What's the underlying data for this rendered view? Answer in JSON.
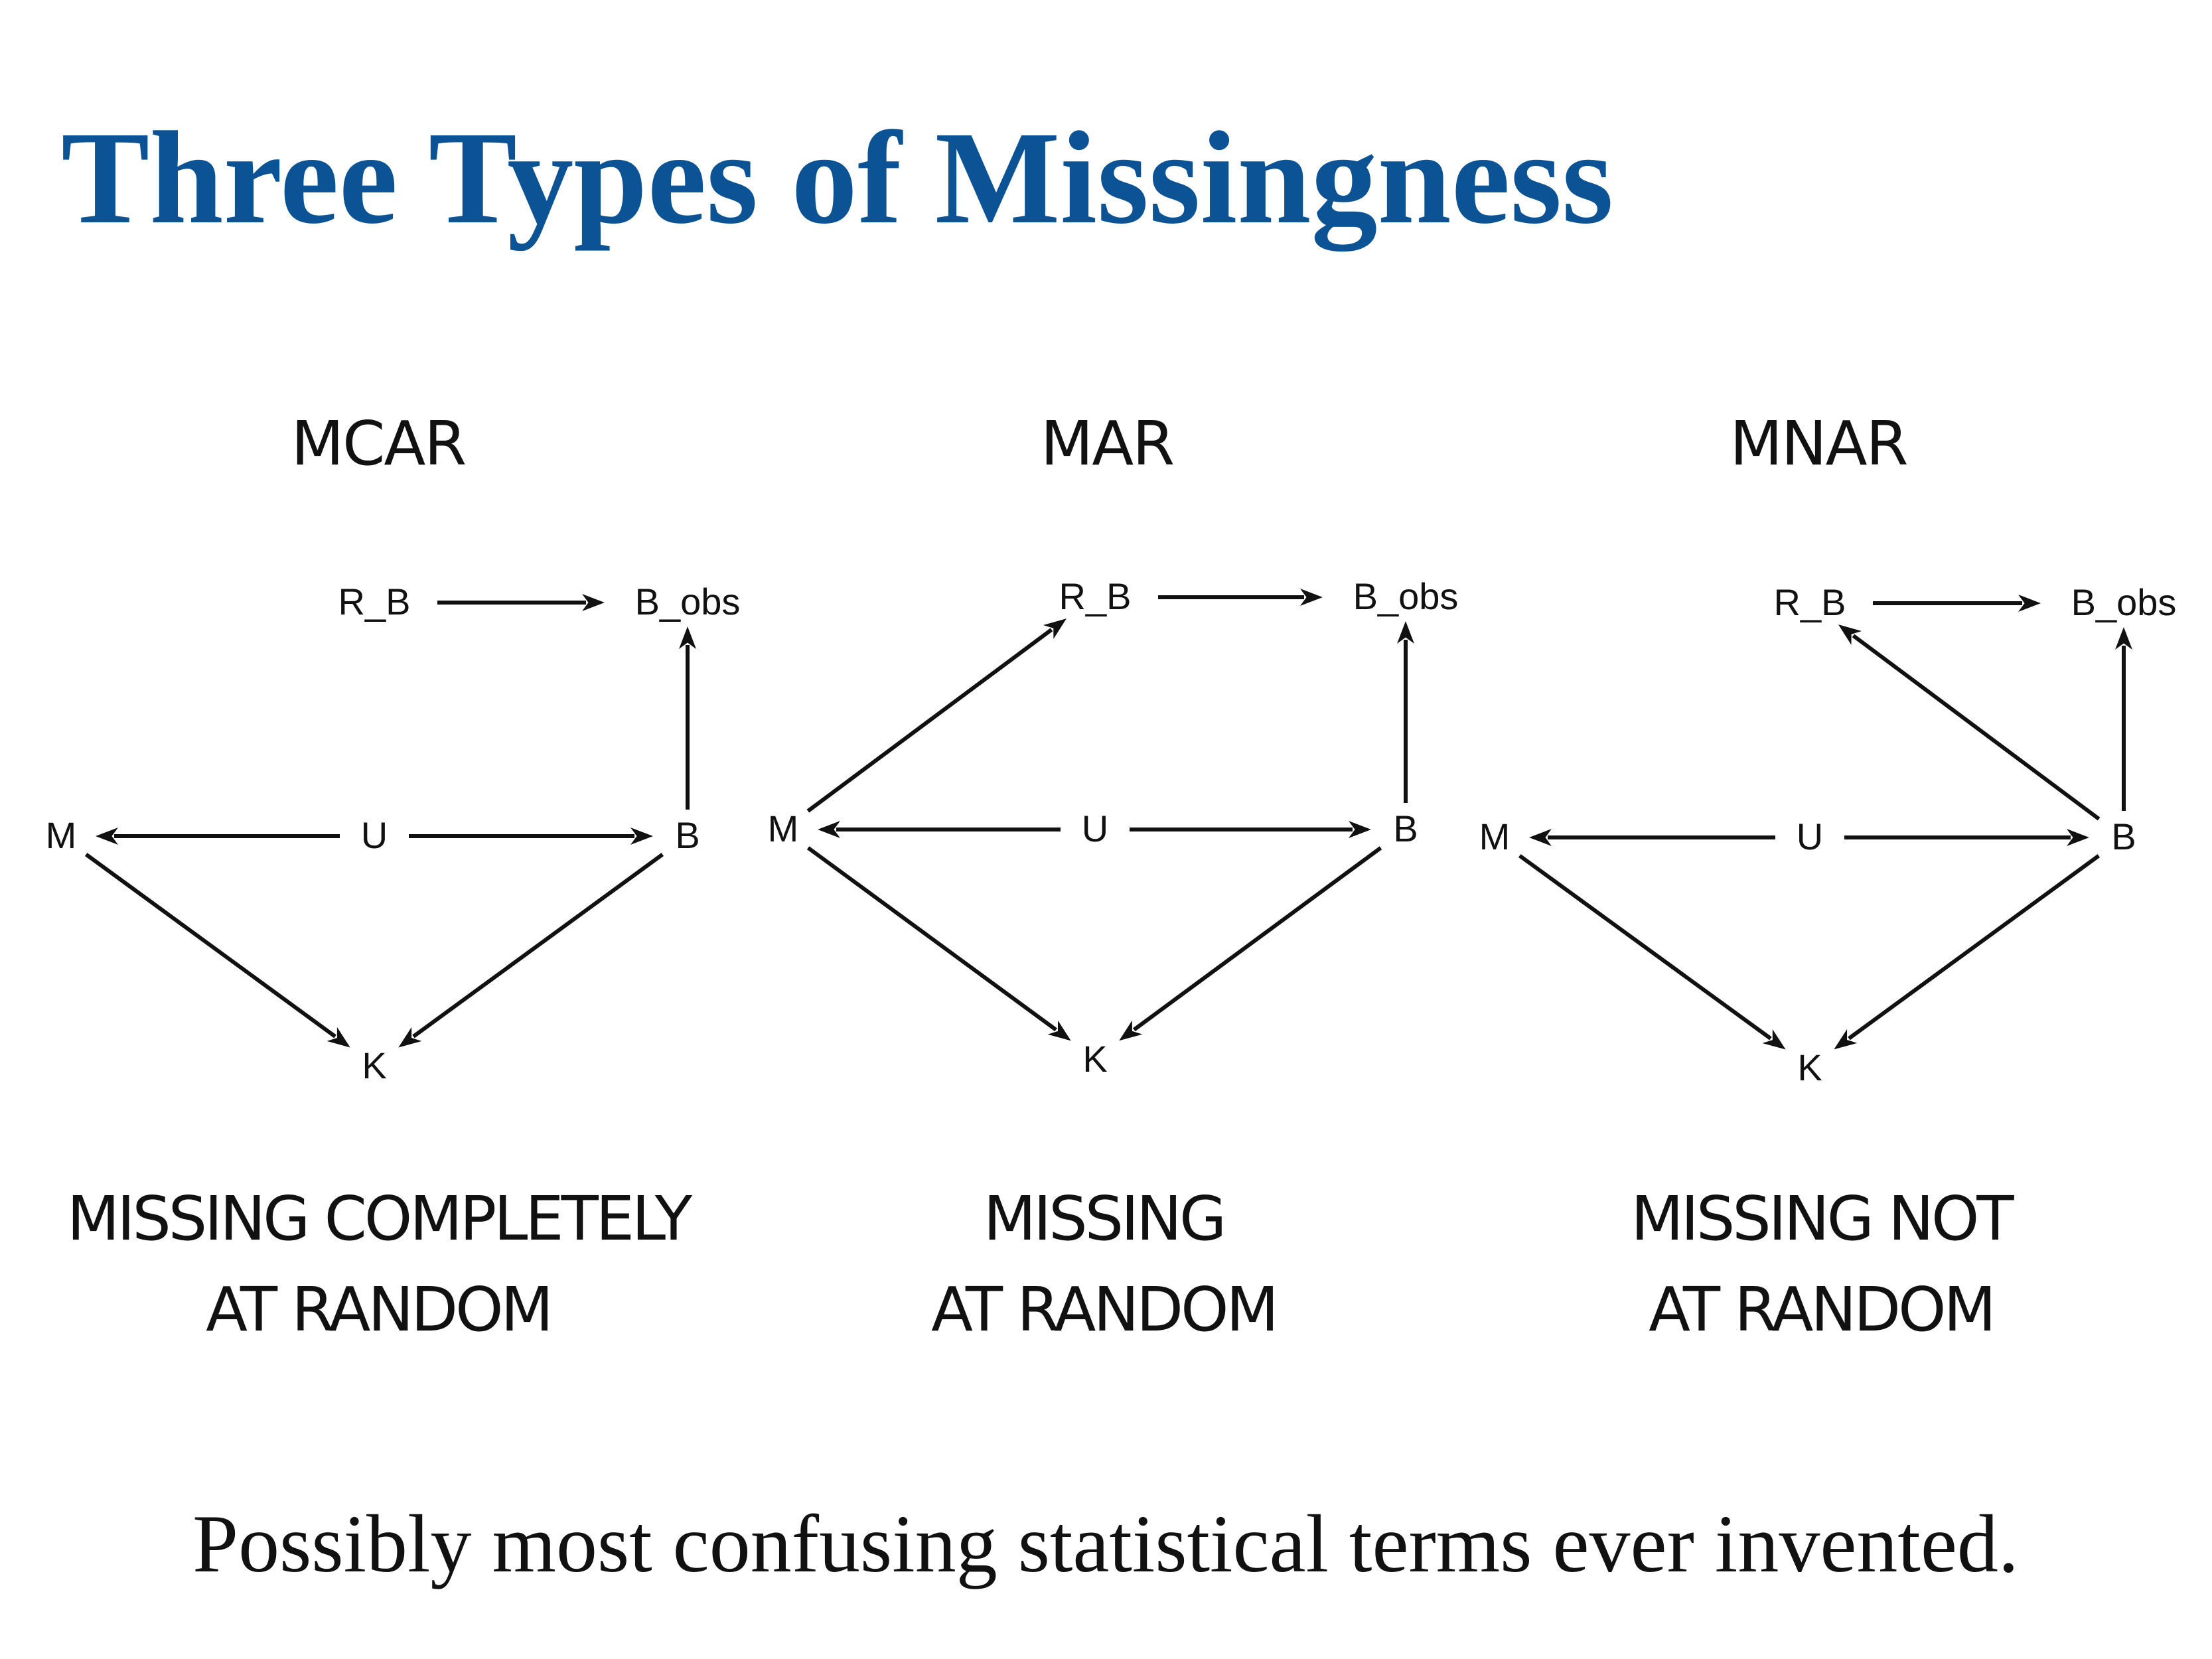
{
  "slide": {
    "title": "Three Types of Missingness",
    "footer": "Possibly most confusing statistical terms ever invented.",
    "title_color": "#0b5394",
    "ink_color": "#111111"
  },
  "panels": [
    {
      "heading": "MCAR",
      "caption_line1": "MISSING COMPLETELY",
      "caption_line2": "AT RANDOM",
      "nodes": {
        "M": "M",
        "U": "U",
        "B": "B",
        "K": "K",
        "R_B": "R_B",
        "B_obs": "B_obs"
      },
      "edges": [
        {
          "from": "U",
          "to": "M"
        },
        {
          "from": "U",
          "to": "B"
        },
        {
          "from": "M",
          "to": "K"
        },
        {
          "from": "B",
          "to": "K"
        },
        {
          "from": "B",
          "to": "B_obs"
        },
        {
          "from": "R_B",
          "to": "B_obs"
        }
      ]
    },
    {
      "heading": "MAR",
      "caption_line1": "MISSING",
      "caption_line2": "AT RANDOM",
      "nodes": {
        "M": "M",
        "U": "U",
        "B": "B",
        "K": "K",
        "R_B": "R_B",
        "B_obs": "B_obs"
      },
      "edges": [
        {
          "from": "U",
          "to": "M"
        },
        {
          "from": "U",
          "to": "B"
        },
        {
          "from": "M",
          "to": "K"
        },
        {
          "from": "B",
          "to": "K"
        },
        {
          "from": "B",
          "to": "B_obs"
        },
        {
          "from": "R_B",
          "to": "B_obs"
        },
        {
          "from": "M",
          "to": "R_B"
        }
      ]
    },
    {
      "heading": "MNAR",
      "caption_line1": "MISSING NOT",
      "caption_line2": "AT RANDOM",
      "nodes": {
        "M": "M",
        "U": "U",
        "B": "B",
        "K": "K",
        "R_B": "R_B",
        "B_obs": "B_obs"
      },
      "edges": [
        {
          "from": "U",
          "to": "M"
        },
        {
          "from": "U",
          "to": "B"
        },
        {
          "from": "M",
          "to": "K"
        },
        {
          "from": "B",
          "to": "K"
        },
        {
          "from": "B",
          "to": "B_obs"
        },
        {
          "from": "R_B",
          "to": "B_obs"
        },
        {
          "from": "B",
          "to": "R_B"
        }
      ]
    }
  ]
}
